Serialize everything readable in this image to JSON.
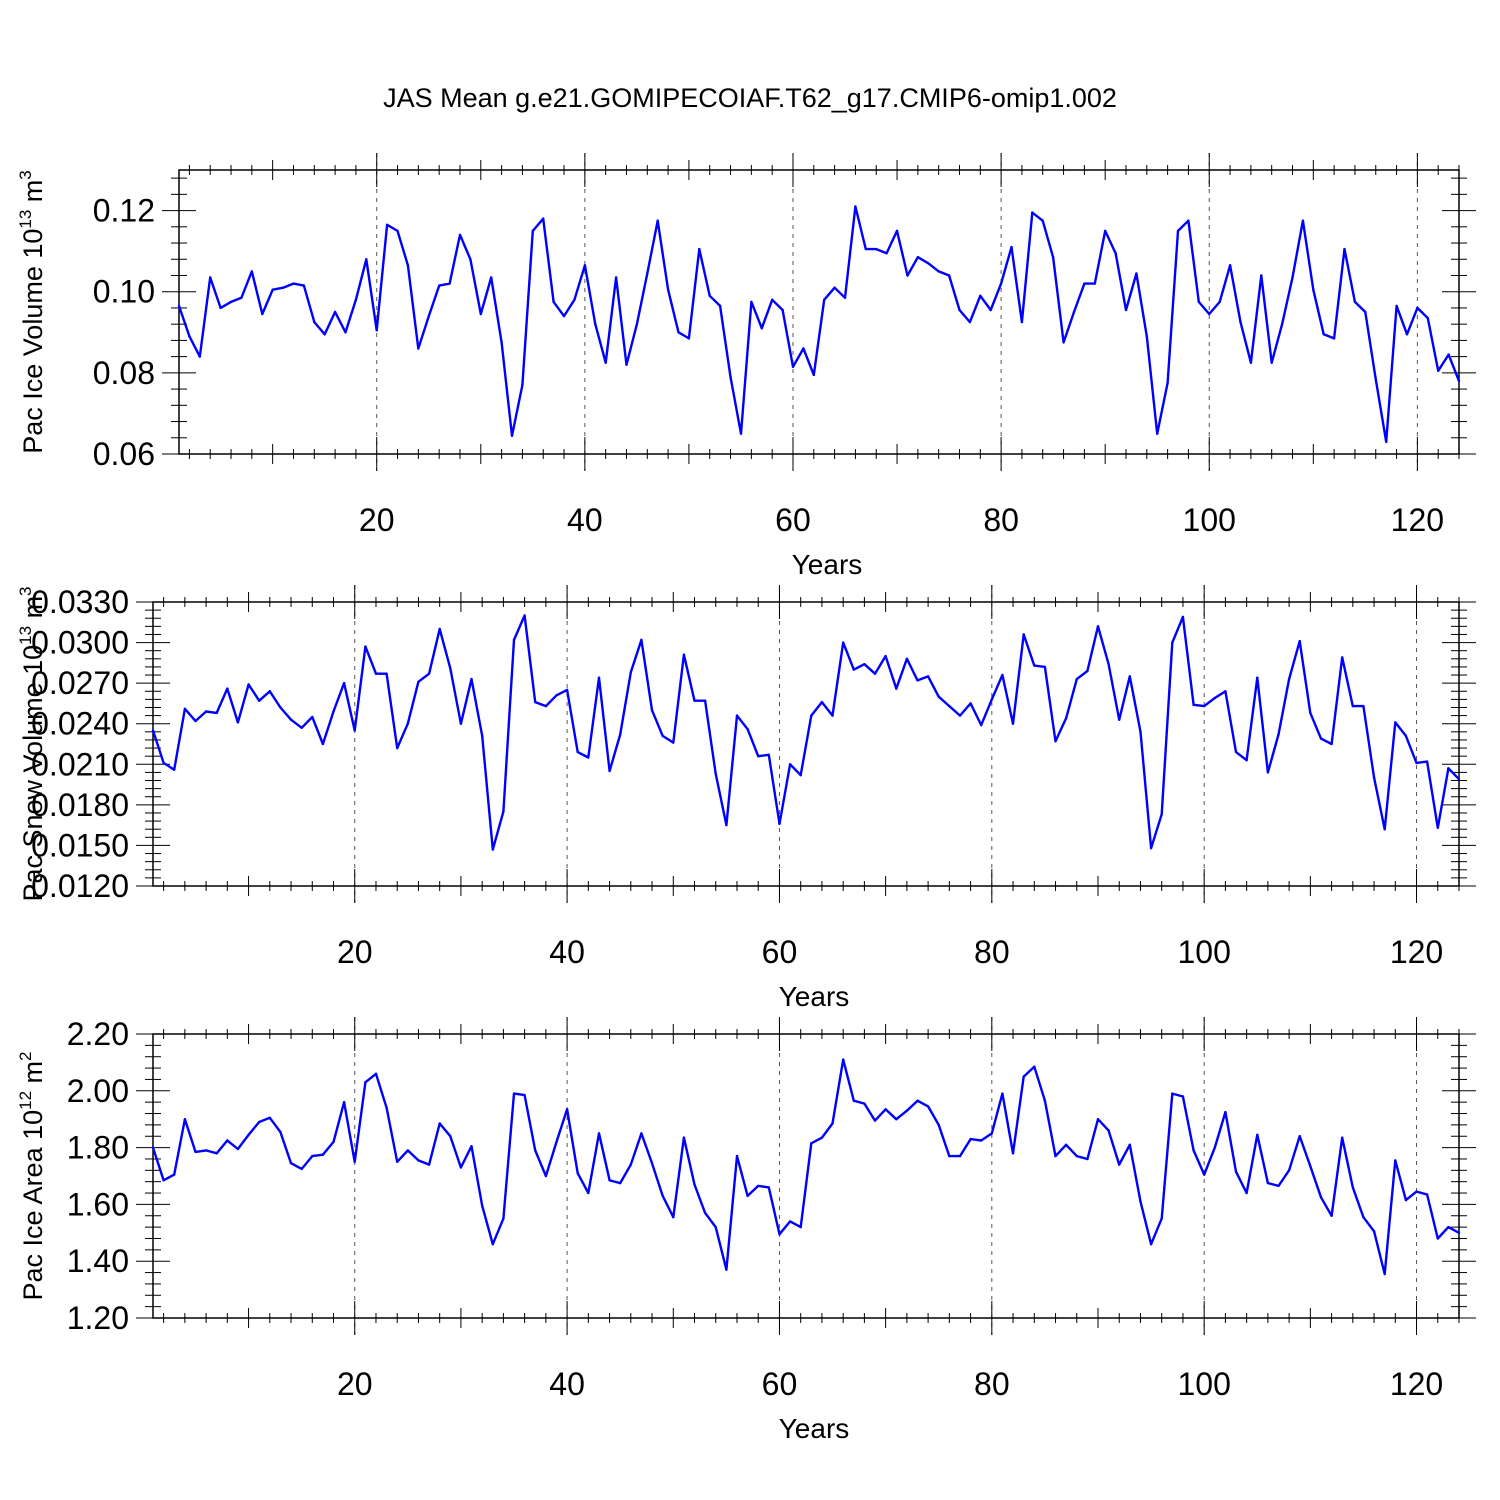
{
  "title": "JAS Mean g.e21.GOMIPECOIAF.T62_g17.CMIP6-omip1.002",
  "colors": {
    "line": "#0000ff",
    "axis": "#000000",
    "grid": "#555555",
    "background": "#ffffff"
  },
  "chart_data": [
    {
      "type": "line",
      "ylabel_main": "Pac Ice Volume 10",
      "ylabel_sup": "13",
      "ylabel_unit": " m",
      "ylabel_unit_sup": "3",
      "xlabel": "Years",
      "xlim": [
        1,
        124
      ],
      "ylim": [
        0.06,
        0.13
      ],
      "xticks": [
        20,
        40,
        60,
        80,
        100,
        120
      ],
      "xtick_labels": [
        "20",
        "40",
        "60",
        "80",
        "100",
        "120"
      ],
      "yticks": [
        0.06,
        0.08,
        0.1,
        0.12
      ],
      "ytick_labels": [
        "0.06",
        "0.08",
        "0.10",
        "0.12"
      ],
      "series": [
        {
          "name": "Pac Ice Volume",
          "values": [
            0.0965,
            0.089,
            0.084,
            0.1035,
            0.096,
            0.0975,
            0.0985,
            0.105,
            0.0945,
            0.1005,
            0.101,
            0.102,
            0.1015,
            0.0925,
            0.0895,
            0.095,
            0.09,
            0.098,
            0.108,
            0.0905,
            0.1165,
            0.115,
            0.1065,
            0.086,
            0.094,
            0.1015,
            0.102,
            0.114,
            0.108,
            0.0945,
            0.1035,
            0.0875,
            0.0645,
            0.077,
            0.115,
            0.118,
            0.0975,
            0.094,
            0.098,
            0.1065,
            0.092,
            0.0825,
            0.1035,
            0.082,
            0.092,
            0.1045,
            0.1175,
            0.1005,
            0.09,
            0.0885,
            0.1105,
            0.099,
            0.0965,
            0.079,
            0.065,
            0.0975,
            0.091,
            0.098,
            0.0955,
            0.0815,
            0.086,
            0.0795,
            0.098,
            0.101,
            0.0985,
            0.121,
            0.1105,
            0.1105,
            0.1095,
            0.115,
            0.104,
            0.1085,
            0.107,
            0.105,
            0.104,
            0.0955,
            0.0925,
            0.099,
            0.0955,
            0.102,
            0.111,
            0.0925,
            0.1195,
            0.1175,
            0.1085,
            0.0875,
            0.095,
            0.102,
            0.102,
            0.115,
            0.1095,
            0.0955,
            0.1045,
            0.089,
            0.065,
            0.0775,
            0.115,
            0.1175,
            0.0975,
            0.0945,
            0.0975,
            0.1065,
            0.0925,
            0.0825,
            0.104,
            0.0825,
            0.092,
            0.1035,
            0.1175,
            0.1005,
            0.0895,
            0.0885,
            0.1105,
            0.0975,
            0.095,
            0.0785,
            0.063,
            0.0965,
            0.0895,
            0.096,
            0.0935,
            0.0805,
            0.0845,
            0.078
          ]
        }
      ]
    },
    {
      "type": "line",
      "ylabel_main": "Pac Snow Volume 10",
      "ylabel_sup": "13",
      "ylabel_unit": " m",
      "ylabel_unit_sup": "3",
      "xlabel": "Years",
      "xlim": [
        1,
        124
      ],
      "ylim": [
        0.012,
        0.033
      ],
      "xticks": [
        20,
        40,
        60,
        80,
        100,
        120
      ],
      "xtick_labels": [
        "20",
        "40",
        "60",
        "80",
        "100",
        "120"
      ],
      "yticks": [
        0.012,
        0.015,
        0.018,
        0.021,
        0.024,
        0.027,
        0.03,
        0.033
      ],
      "ytick_labels": [
        "0.0120",
        "0.0150",
        "0.0180",
        "0.0210",
        "0.0240",
        "0.0270",
        "0.0300",
        "0.0330"
      ],
      "series": [
        {
          "name": "Pac Snow Volume",
          "values": [
            0.0235,
            0.0211,
            0.0206,
            0.0251,
            0.0242,
            0.0249,
            0.0248,
            0.0266,
            0.0241,
            0.0269,
            0.0257,
            0.0264,
            0.0252,
            0.0243,
            0.0237,
            0.0245,
            0.0225,
            0.0249,
            0.027,
            0.0235,
            0.0297,
            0.0277,
            0.0277,
            0.0222,
            0.024,
            0.0271,
            0.0277,
            0.031,
            0.0281,
            0.024,
            0.0273,
            0.0231,
            0.0147,
            0.0175,
            0.0302,
            0.032,
            0.0256,
            0.0253,
            0.0261,
            0.0265,
            0.0219,
            0.0215,
            0.0274,
            0.0205,
            0.0232,
            0.0278,
            0.0302,
            0.025,
            0.0231,
            0.0226,
            0.0291,
            0.0257,
            0.0257,
            0.0203,
            0.0165,
            0.0246,
            0.0236,
            0.0216,
            0.0217,
            0.0166,
            0.021,
            0.0202,
            0.0246,
            0.0256,
            0.0246,
            0.03,
            0.028,
            0.0284,
            0.0277,
            0.029,
            0.0266,
            0.0288,
            0.0272,
            0.0275,
            0.026,
            0.0253,
            0.0246,
            0.0255,
            0.0239,
            0.0258,
            0.0276,
            0.024,
            0.0306,
            0.0283,
            0.0282,
            0.0227,
            0.0244,
            0.0273,
            0.0279,
            0.0312,
            0.0284,
            0.0243,
            0.0275,
            0.0234,
            0.0148,
            0.0173,
            0.03,
            0.0319,
            0.0254,
            0.0253,
            0.0259,
            0.0264,
            0.0219,
            0.0213,
            0.0274,
            0.0204,
            0.0232,
            0.0273,
            0.0301,
            0.0248,
            0.0229,
            0.0225,
            0.0289,
            0.0253,
            0.0253,
            0.02,
            0.0162,
            0.0241,
            0.0231,
            0.0211,
            0.0212,
            0.0163,
            0.0207,
            0.0199
          ]
        }
      ]
    },
    {
      "type": "line",
      "ylabel_main": "Pac Ice Area 10",
      "ylabel_sup": "12",
      "ylabel_unit": " m",
      "ylabel_unit_sup": "2",
      "xlabel": "Years",
      "xlim": [
        1,
        124
      ],
      "ylim": [
        1.2,
        2.2
      ],
      "xticks": [
        20,
        40,
        60,
        80,
        100,
        120
      ],
      "xtick_labels": [
        "20",
        "40",
        "60",
        "80",
        "100",
        "120"
      ],
      "yticks": [
        1.2,
        1.4,
        1.6,
        1.8,
        2.0,
        2.2
      ],
      "ytick_labels": [
        "1.20",
        "1.40",
        "1.60",
        "1.80",
        "2.00",
        "2.20"
      ],
      "series": [
        {
          "name": "Pac Ice Area",
          "values": [
            1.8,
            1.685,
            1.705,
            1.9,
            1.785,
            1.79,
            1.78,
            1.825,
            1.795,
            1.845,
            1.89,
            1.905,
            1.855,
            1.745,
            1.725,
            1.77,
            1.775,
            1.82,
            1.96,
            1.75,
            2.03,
            2.06,
            1.94,
            1.75,
            1.79,
            1.755,
            1.74,
            1.885,
            1.84,
            1.73,
            1.805,
            1.595,
            1.46,
            1.55,
            1.99,
            1.985,
            1.79,
            1.7,
            1.82,
            1.935,
            1.71,
            1.64,
            1.85,
            1.685,
            1.675,
            1.74,
            1.85,
            1.745,
            1.63,
            1.555,
            1.835,
            1.67,
            1.57,
            1.52,
            1.37,
            1.77,
            1.63,
            1.665,
            1.66,
            1.495,
            1.54,
            1.52,
            1.815,
            1.835,
            1.885,
            2.11,
            1.965,
            1.955,
            1.895,
            1.935,
            1.9,
            1.93,
            1.965,
            1.945,
            1.88,
            1.77,
            1.77,
            1.83,
            1.825,
            1.85,
            1.99,
            1.78,
            2.05,
            2.085,
            1.965,
            1.77,
            1.81,
            1.77,
            1.76,
            1.9,
            1.86,
            1.74,
            1.81,
            1.61,
            1.46,
            1.55,
            1.99,
            1.98,
            1.79,
            1.705,
            1.8,
            1.925,
            1.715,
            1.64,
            1.845,
            1.675,
            1.665,
            1.72,
            1.84,
            1.735,
            1.625,
            1.56,
            1.835,
            1.66,
            1.555,
            1.505,
            1.355,
            1.755,
            1.615,
            1.645,
            1.635,
            1.48,
            1.52,
            1.5
          ]
        }
      ]
    }
  ]
}
